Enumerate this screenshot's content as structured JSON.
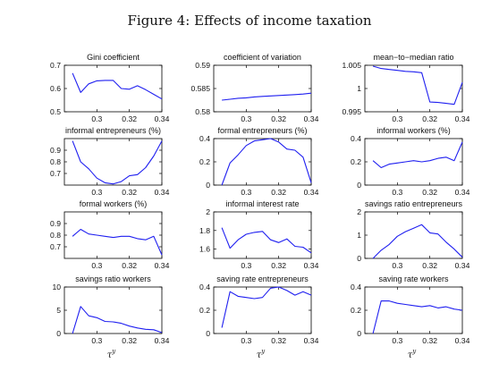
{
  "figure": {
    "title": "Figure 4: Effects of income taxation"
  },
  "line_color": "#1f1ff0",
  "chart_data": [
    {
      "type": "line",
      "title": "Gini coefficient",
      "xlabel": "",
      "xlim": [
        0.28,
        0.34
      ],
      "ylim": [
        0.5,
        0.7
      ],
      "xticks": [
        0.3,
        0.32,
        0.34
      ],
      "xtick_labels": [
        "0.3",
        "0.32",
        "0.34"
      ],
      "yticks": [
        0.5,
        0.6,
        0.7
      ],
      "ytick_labels": [
        "0.5",
        "0.6",
        "0.7"
      ],
      "x": [
        0.285,
        0.29,
        0.295,
        0.3,
        0.305,
        0.31,
        0.315,
        0.32,
        0.325,
        0.33,
        0.335,
        0.34
      ],
      "y": [
        0.666,
        0.583,
        0.62,
        0.633,
        0.635,
        0.635,
        0.6,
        0.597,
        0.612,
        0.595,
        0.575,
        0.555
      ]
    },
    {
      "type": "line",
      "title": "coefficient of variation",
      "xlabel": "",
      "xlim": [
        0.28,
        0.34
      ],
      "ylim": [
        0.58,
        0.59
      ],
      "xticks": [
        0.3,
        0.32,
        0.34
      ],
      "xtick_labels": [
        "0.3",
        "0.32",
        "0.34"
      ],
      "yticks": [
        0.58,
        0.585,
        0.59
      ],
      "ytick_labels": [
        "0.58",
        "0.585",
        "0.59"
      ],
      "x": [
        0.285,
        0.29,
        0.295,
        0.3,
        0.305,
        0.31,
        0.315,
        0.32,
        0.325,
        0.33,
        0.335,
        0.34
      ],
      "y": [
        0.5825,
        0.5827,
        0.5829,
        0.583,
        0.5832,
        0.5833,
        0.5834,
        0.5835,
        0.5836,
        0.5837,
        0.5838,
        0.584
      ]
    },
    {
      "type": "line",
      "title": "mean−to−median ratio",
      "xlabel": "",
      "xlim": [
        0.28,
        0.34
      ],
      "ylim": [
        0.995,
        1.005
      ],
      "xticks": [
        0.3,
        0.32,
        0.34
      ],
      "xtick_labels": [
        "0.3",
        "0.32",
        "0.34"
      ],
      "yticks": [
        0.995,
        1.0,
        1.005
      ],
      "ytick_labels": [
        "0.995",
        "1",
        "1.005"
      ],
      "x": [
        0.285,
        0.29,
        0.295,
        0.3,
        0.305,
        0.31,
        0.315,
        0.32,
        0.325,
        0.33,
        0.335,
        0.34
      ],
      "y": [
        1.0048,
        1.0043,
        1.0041,
        1.0039,
        1.0037,
        1.0036,
        1.0034,
        0.9971,
        0.997,
        0.9968,
        0.9966,
        1.0013
      ]
    },
    {
      "type": "line",
      "title": "informal entrepreneurs (%)",
      "xlabel": "",
      "xlim": [
        0.28,
        0.34
      ],
      "ylim": [
        0.6,
        1.0
      ],
      "xticks": [
        0.3,
        0.32,
        0.34
      ],
      "xtick_labels": [
        "0.3",
        "0.32",
        "0.34"
      ],
      "yticks": [
        0.7,
        0.8,
        0.9
      ],
      "ytick_labels": [
        "0.7",
        "0.8",
        "0.9"
      ],
      "x": [
        0.285,
        0.29,
        0.295,
        0.3,
        0.305,
        0.31,
        0.315,
        0.32,
        0.325,
        0.33,
        0.335,
        0.34
      ],
      "y": [
        0.98,
        0.8,
        0.74,
        0.66,
        0.62,
        0.61,
        0.63,
        0.68,
        0.69,
        0.75,
        0.85,
        0.98
      ]
    },
    {
      "type": "line",
      "title": "formal entrepreneurs (%)",
      "xlabel": "",
      "xlim": [
        0.28,
        0.34
      ],
      "ylim": [
        0,
        0.4
      ],
      "xticks": [
        0.3,
        0.32,
        0.34
      ],
      "xtick_labels": [
        "0.3",
        "0.32",
        "0.34"
      ],
      "yticks": [
        0,
        0.2,
        0.4
      ],
      "ytick_labels": [
        "0",
        "0.2",
        "0.4"
      ],
      "x": [
        0.285,
        0.29,
        0.295,
        0.3,
        0.305,
        0.31,
        0.315,
        0.32,
        0.325,
        0.33,
        0.335,
        0.34
      ],
      "y": [
        0.0,
        0.19,
        0.26,
        0.34,
        0.38,
        0.39,
        0.4,
        0.37,
        0.31,
        0.3,
        0.24,
        0.02
      ]
    },
    {
      "type": "line",
      "title": "informal workers (%)",
      "xlabel": "",
      "xlim": [
        0.28,
        0.34
      ],
      "ylim": [
        0,
        0.4
      ],
      "xticks": [
        0.3,
        0.32,
        0.34
      ],
      "xtick_labels": [
        "0.3",
        "0.32",
        "0.34"
      ],
      "yticks": [
        0,
        0.2,
        0.4
      ],
      "ytick_labels": [
        "0",
        "0.2",
        "0.4"
      ],
      "x": [
        0.285,
        0.29,
        0.295,
        0.3,
        0.305,
        0.31,
        0.315,
        0.32,
        0.325,
        0.33,
        0.335,
        0.34
      ],
      "y": [
        0.21,
        0.15,
        0.18,
        0.19,
        0.2,
        0.21,
        0.2,
        0.21,
        0.23,
        0.24,
        0.21,
        0.37
      ]
    },
    {
      "type": "line",
      "title": "formal workers (%)",
      "xlabel": "",
      "xlim": [
        0.28,
        0.34
      ],
      "ylim": [
        0.6,
        1.0
      ],
      "xticks": [
        0.3,
        0.32,
        0.34
      ],
      "xtick_labels": [
        "0.3",
        "0.32",
        "0.34"
      ],
      "yticks": [
        0.7,
        0.8,
        0.9
      ],
      "ytick_labels": [
        "0.7",
        "0.8",
        "0.9"
      ],
      "x": [
        0.285,
        0.29,
        0.295,
        0.3,
        0.305,
        0.31,
        0.315,
        0.32,
        0.325,
        0.33,
        0.335,
        0.34
      ],
      "y": [
        0.79,
        0.85,
        0.81,
        0.8,
        0.79,
        0.78,
        0.79,
        0.79,
        0.77,
        0.76,
        0.79,
        0.63
      ]
    },
    {
      "type": "line",
      "title": "informal interest rate",
      "xlabel": "",
      "xlim": [
        0.28,
        0.34
      ],
      "ylim": [
        1.5,
        2.0
      ],
      "xticks": [
        0.3,
        0.32,
        0.34
      ],
      "xtick_labels": [
        "0.3",
        "0.32",
        "0.34"
      ],
      "yticks": [
        1.6,
        1.8,
        2.0
      ],
      "ytick_labels": [
        "1.6",
        "1.8",
        "2"
      ],
      "x": [
        0.285,
        0.29,
        0.295,
        0.3,
        0.305,
        0.31,
        0.315,
        0.32,
        0.325,
        0.33,
        0.335,
        0.34
      ],
      "y": [
        1.83,
        1.61,
        1.7,
        1.76,
        1.78,
        1.79,
        1.7,
        1.67,
        1.71,
        1.63,
        1.62,
        1.56
      ]
    },
    {
      "type": "line",
      "title": "savings ratio entrepreneurs",
      "xlabel": "",
      "xlim": [
        0.28,
        0.34
      ],
      "ylim": [
        0,
        2
      ],
      "xticks": [
        0.3,
        0.32,
        0.34
      ],
      "xtick_labels": [
        "0.3",
        "0.32",
        "0.34"
      ],
      "yticks": [
        0,
        1,
        2
      ],
      "ytick_labels": [
        "0",
        "1",
        "2"
      ],
      "x": [
        0.285,
        0.29,
        0.295,
        0.3,
        0.305,
        0.31,
        0.315,
        0.32,
        0.325,
        0.33,
        0.335,
        0.34
      ],
      "y": [
        0.0,
        0.35,
        0.6,
        0.95,
        1.15,
        1.3,
        1.45,
        1.1,
        1.05,
        0.7,
        0.4,
        0.05
      ]
    },
    {
      "type": "line",
      "title": "savings ratio workers",
      "xlabel": "τy",
      "xlim": [
        0.28,
        0.34
      ],
      "ylim": [
        0,
        10
      ],
      "xticks": [
        0.3,
        0.32,
        0.34
      ],
      "xtick_labels": [
        "0.3",
        "0.32",
        "0.34"
      ],
      "yticks": [
        0,
        5,
        10
      ],
      "ytick_labels": [
        "0",
        "5",
        "10"
      ],
      "x": [
        0.285,
        0.29,
        0.295,
        0.3,
        0.305,
        0.31,
        0.315,
        0.32,
        0.325,
        0.33,
        0.335,
        0.34
      ],
      "y": [
        0.0,
        5.8,
        3.8,
        3.4,
        2.6,
        2.5,
        2.2,
        1.6,
        1.2,
        0.9,
        0.8,
        0.2
      ]
    },
    {
      "type": "line",
      "title": "saving rate entrepreneurs",
      "xlabel": "τy",
      "xlim": [
        0.28,
        0.34
      ],
      "ylim": [
        0,
        0.4
      ],
      "xticks": [
        0.3,
        0.32,
        0.34
      ],
      "xtick_labels": [
        "0.3",
        "0.32",
        "0.34"
      ],
      "yticks": [
        0,
        0.2,
        0.4
      ],
      "ytick_labels": [
        "0",
        "0.2",
        "0.4"
      ],
      "x": [
        0.285,
        0.29,
        0.295,
        0.3,
        0.305,
        0.31,
        0.315,
        0.32,
        0.325,
        0.33,
        0.335,
        0.34
      ],
      "y": [
        0.05,
        0.36,
        0.32,
        0.31,
        0.3,
        0.31,
        0.39,
        0.4,
        0.37,
        0.33,
        0.36,
        0.33
      ]
    },
    {
      "type": "line",
      "title": "saving rate workers",
      "xlabel": "τy",
      "xlim": [
        0.28,
        0.34
      ],
      "ylim": [
        0,
        0.4
      ],
      "xticks": [
        0.3,
        0.32,
        0.34
      ],
      "xtick_labels": [
        "0.3",
        "0.32",
        "0.34"
      ],
      "yticks": [
        0,
        0.2,
        0.4
      ],
      "ytick_labels": [
        "0",
        "0.2",
        "0.4"
      ],
      "x": [
        0.285,
        0.29,
        0.295,
        0.3,
        0.305,
        0.31,
        0.315,
        0.32,
        0.325,
        0.33,
        0.335,
        0.34
      ],
      "y": [
        0.0,
        0.28,
        0.28,
        0.26,
        0.25,
        0.24,
        0.23,
        0.24,
        0.22,
        0.23,
        0.21,
        0.2
      ]
    }
  ]
}
